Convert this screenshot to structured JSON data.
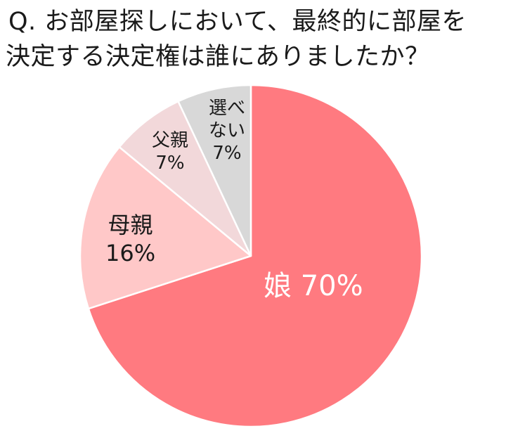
{
  "title": {
    "line1": "Q. お部屋探しにおいて、最終的に部屋を",
    "line2": "決定する決定権は誰にありましたか？"
  },
  "chart_data": {
    "type": "pie",
    "title": "Q. お部屋探しにおいて、最終的に部屋を決定する決定権は誰にありましたか？",
    "start_angle": "12 o'clock, clockwise",
    "slices": [
      {
        "label": "娘",
        "value": 70,
        "display": "娘 70%",
        "color": "#FF7A80"
      },
      {
        "label": "母親",
        "value": 16,
        "display": "母親 16%",
        "color": "#FFC8C8"
      },
      {
        "label": "父親",
        "value": 7,
        "display": "父親 7%",
        "color": "#F2D8DA"
      },
      {
        "label": "選べない",
        "value": 7,
        "display": "選べない 7%",
        "color": "#D8D8D8"
      }
    ],
    "legend": "none (labels inside slices)"
  },
  "labels": {
    "daughter": {
      "name": "娘",
      "pct": "70%"
    },
    "mother": {
      "name": "母親",
      "pct": "16%"
    },
    "father": {
      "name": "父親",
      "pct": "7%"
    },
    "cannot_choose": {
      "name_line1": "選べ",
      "name_line2": "ない",
      "pct": "7%"
    }
  }
}
